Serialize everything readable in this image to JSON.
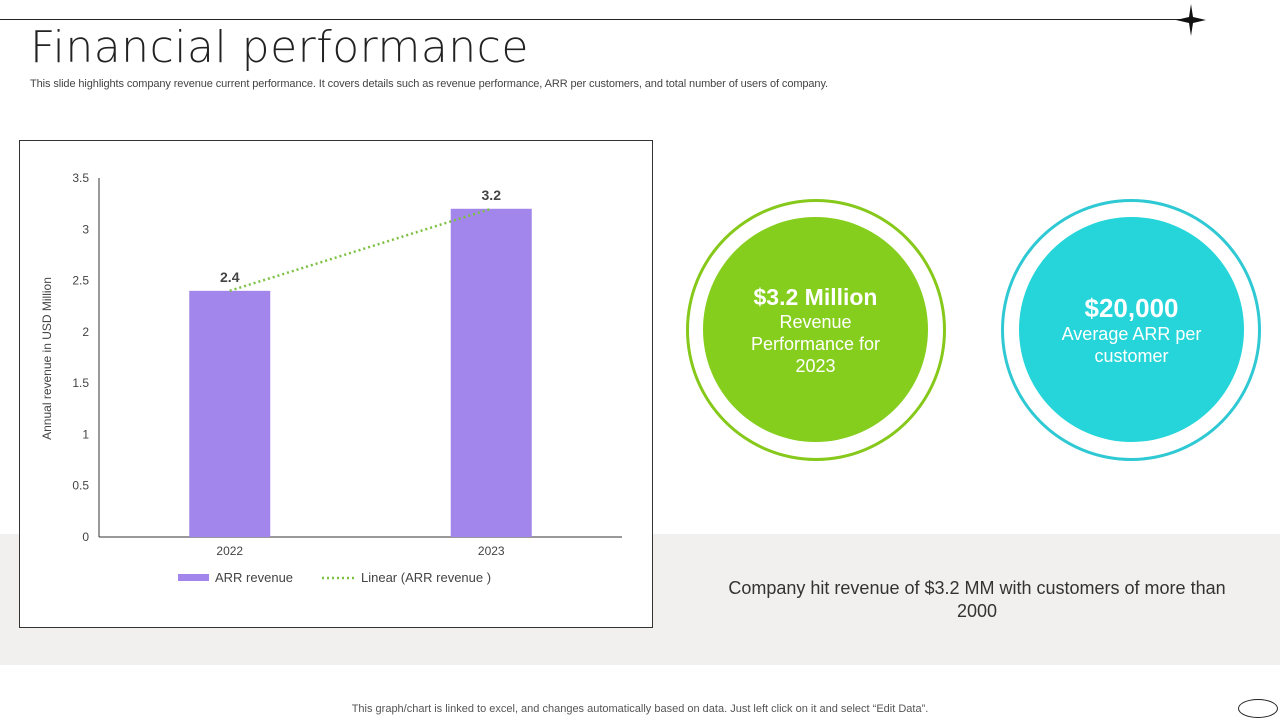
{
  "slide": {
    "title": "Financial performance",
    "subtitle": "This slide highlights company revenue current performance. It covers details such as revenue performance, ARR per customers, and total number of users of company.",
    "footer": "This graph/chart is linked to excel,  and changes automatically based on data. Just left click on it and select “Edit Data”."
  },
  "kpis": [
    {
      "value": "$3.2 Million",
      "label": "Revenue Performance for 2023",
      "color": "#86ce1e",
      "ring_color": "#86c91b"
    },
    {
      "value": "$20,000",
      "label": "Average ARR per customer",
      "color": "#25d5da",
      "ring_color": "#2fc9d3"
    }
  ],
  "summary": "Company hit revenue of $3.2 MM with customers of more than 2000",
  "icons": [
    "star-icon",
    "oval-icon"
  ],
  "chart_data": {
    "type": "bar",
    "categories": [
      "2022",
      "2023"
    ],
    "series": [
      {
        "name": "ARR revenue",
        "values": [
          2.4,
          3.2
        ],
        "color": "#a286ec"
      }
    ],
    "trendline": {
      "name": "Linear (ARR revenue )",
      "type": "linear",
      "values": [
        2.4,
        3.2
      ],
      "color": "#7dc142",
      "style": "dotted"
    },
    "data_labels": [
      "2.4",
      "3.2"
    ],
    "ylabel": "Annual revenue  in USD Million",
    "xlabel": "",
    "ylim": [
      0,
      3.5
    ],
    "yticks": [
      0,
      0.5,
      1,
      1.5,
      2,
      2.5,
      3,
      3.5
    ],
    "ytick_labels": [
      "0",
      "0.5",
      "1",
      "1.5",
      "2",
      "2.5",
      "3",
      "3.5"
    ],
    "grid": false,
    "legend_position": "bottom"
  }
}
